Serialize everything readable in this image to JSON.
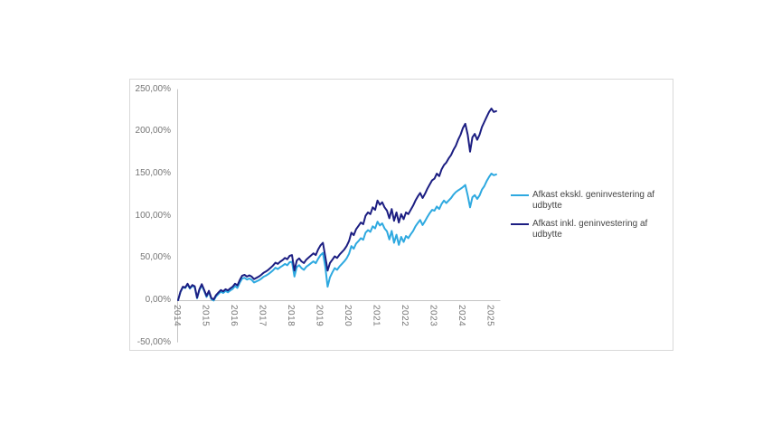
{
  "style": {
    "card_border_color": "#d9d9d9",
    "axis_line_color": "#c4c4c4",
    "axis_label_color": "#767676",
    "legend_text_color": "#444444"
  },
  "chart_data": {
    "type": "line",
    "title": "",
    "xlabel": "",
    "ylabel": "",
    "grid": false,
    "legend_position": "right",
    "ylim": [
      -50,
      250
    ],
    "xlim": [
      2014,
      2025.3
    ],
    "y_tick_labels": [
      "250,00%",
      "200,00%",
      "150,00%",
      "100,00%",
      "50,00%",
      "0,00%",
      "-50,00%"
    ],
    "y_tick_values": [
      250,
      200,
      150,
      100,
      50,
      0,
      -50
    ],
    "x_tick_labels": [
      "2014",
      "2015",
      "2016",
      "2017",
      "2018",
      "2019",
      "2020",
      "2021",
      "2022",
      "2023",
      "2024",
      "2025"
    ],
    "x_tick_values": [
      2014,
      2015,
      2016,
      2017,
      2018,
      2019,
      2020,
      2021,
      2022,
      2023,
      2024,
      2025
    ],
    "x": [
      2014.0,
      2014.083,
      2014.167,
      2014.25,
      2014.333,
      2014.417,
      2014.5,
      2014.583,
      2014.667,
      2014.75,
      2014.833,
      2014.917,
      2015.0,
      2015.083,
      2015.167,
      2015.25,
      2015.333,
      2015.417,
      2015.5,
      2015.583,
      2015.667,
      2015.75,
      2015.833,
      2015.917,
      2016.0,
      2016.083,
      2016.167,
      2016.25,
      2016.333,
      2016.417,
      2016.5,
      2016.583,
      2016.667,
      2016.75,
      2016.833,
      2016.917,
      2017.0,
      2017.083,
      2017.167,
      2017.25,
      2017.333,
      2017.417,
      2017.5,
      2017.583,
      2017.667,
      2017.75,
      2017.833,
      2017.917,
      2018.0,
      2018.083,
      2018.167,
      2018.25,
      2018.333,
      2018.417,
      2018.5,
      2018.583,
      2018.667,
      2018.75,
      2018.833,
      2018.917,
      2019.0,
      2019.083,
      2019.167,
      2019.25,
      2019.333,
      2019.417,
      2019.5,
      2019.583,
      2019.667,
      2019.75,
      2019.833,
      2019.917,
      2020.0,
      2020.083,
      2020.167,
      2020.25,
      2020.333,
      2020.417,
      2020.5,
      2020.583,
      2020.667,
      2020.75,
      2020.833,
      2020.917,
      2021.0,
      2021.083,
      2021.167,
      2021.25,
      2021.333,
      2021.417,
      2021.5,
      2021.583,
      2021.667,
      2021.75,
      2021.833,
      2021.917,
      2022.0,
      2022.083,
      2022.167,
      2022.25,
      2022.333,
      2022.417,
      2022.5,
      2022.583,
      2022.667,
      2022.75,
      2022.833,
      2022.917,
      2023.0,
      2023.083,
      2023.167,
      2023.25,
      2023.333,
      2023.417,
      2023.5,
      2023.583,
      2023.667,
      2023.75,
      2023.833,
      2023.917,
      2024.0,
      2024.083,
      2024.167,
      2024.25,
      2024.333,
      2024.417,
      2024.5,
      2024.583,
      2024.667,
      2024.75,
      2024.833,
      2024.917,
      2025.0,
      2025.083,
      2025.167
    ],
    "series": [
      {
        "name": "Afkast ekskl. geninvestering af udbytte",
        "color": "#2ea9e0",
        "values": [
          0,
          9.5,
          15.3,
          14.3,
          18.6,
          13.7,
          17,
          15.4,
          2.2,
          12,
          17.7,
          10.8,
          3.8,
          9.7,
          1.2,
          -0.4,
          4.5,
          7.3,
          10.2,
          8.6,
          10.9,
          9.3,
          11.6,
          13.4,
          16.7,
          14.6,
          20.9,
          25.7,
          26.5,
          24.4,
          25.7,
          24.1,
          21,
          22.3,
          23.6,
          25.4,
          27.7,
          29,
          30.8,
          33,
          35.3,
          38.5,
          36.8,
          39,
          40.8,
          43,
          41.3,
          45,
          45.5,
          28,
          39.3,
          41.4,
          38,
          36,
          39.5,
          41.6,
          43.8,
          45.9,
          43.8,
          49,
          53.5,
          56,
          40,
          16,
          27,
          33,
          38,
          36,
          40,
          43,
          46,
          49.5,
          55,
          64,
          61,
          67,
          70,
          73.5,
          71.5,
          80,
          83,
          81,
          87.5,
          85,
          93,
          88.5,
          91,
          85,
          81.5,
          72,
          82,
          68,
          77.5,
          65.5,
          75,
          69,
          76,
          73.5,
          78,
          82,
          87.5,
          91.5,
          95,
          89,
          93.5,
          98.5,
          103,
          107,
          106,
          111,
          108,
          114,
          118,
          115,
          118,
          121,
          125,
          128,
          130,
          132,
          134,
          136.5,
          124,
          110,
          122,
          124.5,
          120,
          124,
          131,
          135,
          141,
          146,
          150,
          148,
          149
        ]
      },
      {
        "name": "Afkast inkl. geninvestering af udbytte",
        "color": "#1c1e82",
        "values": [
          0,
          10,
          16,
          15,
          19.5,
          14.5,
          18,
          16.5,
          3,
          13,
          19,
          12,
          5,
          11,
          2.5,
          1,
          6,
          9,
          12,
          10.5,
          13,
          11.5,
          14,
          16,
          19.5,
          17.5,
          24,
          29,
          30,
          28,
          29.5,
          28,
          25,
          26.5,
          28,
          30,
          32.5,
          34,
          36,
          38.5,
          41,
          44.5,
          43,
          45.5,
          47.5,
          50,
          48.5,
          52.5,
          53.5,
          35,
          47,
          49.5,
          46,
          44,
          48,
          50.5,
          53,
          55.5,
          53.5,
          60,
          65,
          68,
          52,
          35,
          44,
          48,
          52,
          50,
          54,
          57,
          60,
          64,
          70,
          80,
          77,
          84,
          88,
          92,
          90,
          100,
          104,
          102,
          110,
          107,
          118,
          113,
          116,
          110,
          106,
          97,
          108,
          94,
          104,
          92,
          102,
          96,
          104,
          102,
          107,
          112,
          118,
          123,
          127,
          121,
          126,
          132,
          137,
          142,
          144,
          150,
          147,
          155,
          160,
          163,
          168,
          172,
          178,
          183,
          190,
          196,
          204,
          209,
          196,
          176,
          193,
          197,
          190,
          196,
          205,
          211,
          217,
          223,
          227,
          223,
          224
        ]
      }
    ]
  },
  "legend": {
    "items": [
      {
        "label": "Afkast ekskl. geninvestering af udbytte"
      },
      {
        "label": "Afkast inkl. geninvestering af udbytte"
      }
    ]
  }
}
